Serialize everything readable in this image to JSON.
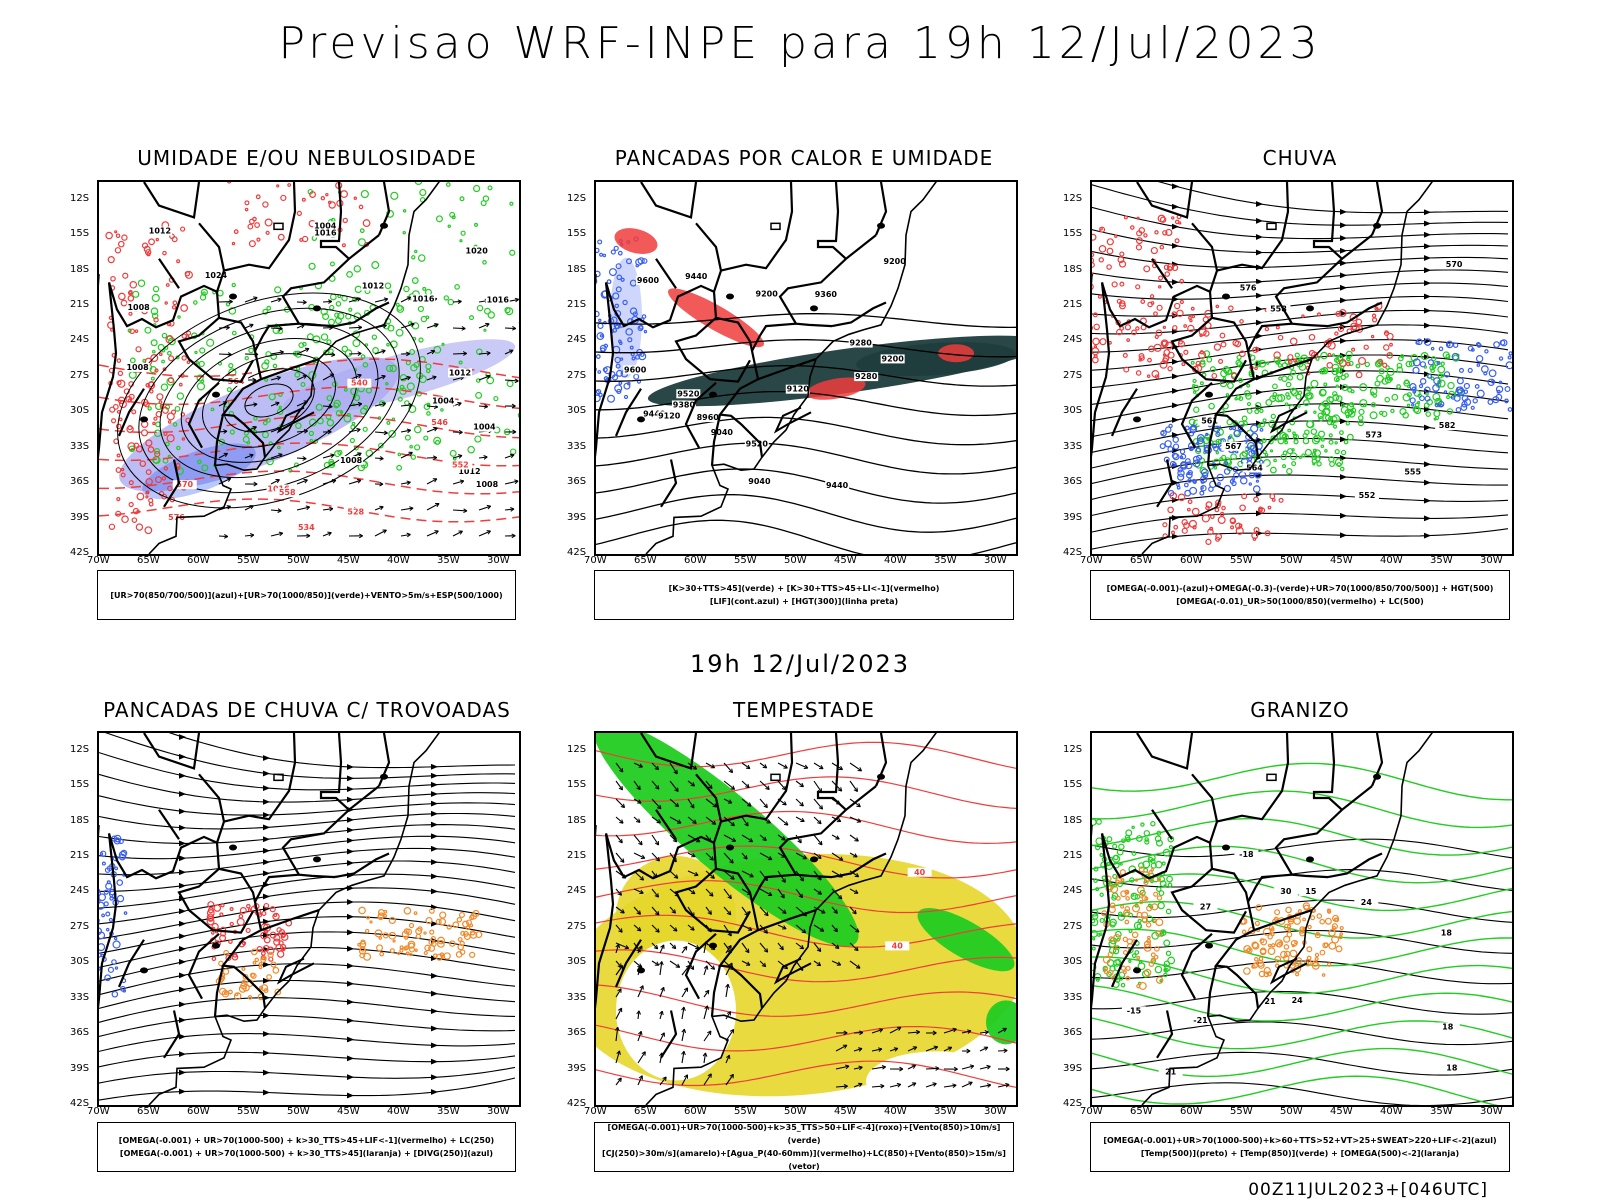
{
  "title": "Previsao WRF-INPE  para 19h 12/Jul/2023",
  "subtitle": "19h 12/Jul/2023",
  "footer_stamp": "00Z11JUL2023+[046UTC]",
  "lat_labels": [
    "12S",
    "15S",
    "18S",
    "21S",
    "24S",
    "27S",
    "30S",
    "33S",
    "36S",
    "39S",
    "42S"
  ],
  "lon_labels": [
    "70W",
    "65W",
    "60W",
    "55W",
    "50W",
    "45W",
    "40W",
    "35W",
    "30W"
  ],
  "colors": {
    "blue": "#3a5ff0",
    "green": "#22cc22",
    "red": "#f03c3c",
    "orange": "#f08a2a",
    "dark_teal": "#1f3d3d",
    "yellow": "#e6d62a",
    "lavender": "#a7a7f2",
    "black": "#000000"
  },
  "panels": [
    {
      "id": "umidade",
      "title": "UMIDADE E/OU NEBULOSIDADE",
      "legend": [
        "[UR>70(850/700/500)](azul)+[UR>70(1000/850)](verde)+VENTO>5m/s+ESP(500/1000)"
      ],
      "contour_labels": [
        "1008",
        "1012",
        "1004",
        "1008",
        "1012",
        "1016",
        "1004",
        "1008",
        "1004",
        "1012",
        "1008",
        "1012",
        "1016",
        "1020",
        "1024",
        "1016",
        "1016",
        "576",
        "570",
        "564",
        "558",
        "552",
        "546",
        "540",
        "534",
        "528"
      ]
    },
    {
      "id": "pancadas-calor",
      "title": "PANCADAS POR CALOR E UMIDADE",
      "legend": [
        "[K>30+TTS>45](verde) + [K>30+TTS>45+LI<-1](vermelho)",
        "[LIF](cont.azul) + [HGT(300)](linha preta)"
      ],
      "contour_labels": [
        "9600",
        "9600",
        "9520",
        "9440",
        "9520",
        "9440",
        "9440",
        "9360",
        "9280",
        "9380",
        "9280",
        "9200",
        "9200",
        "9200",
        "9120",
        "9120",
        "9040",
        "9040",
        "8960"
      ]
    },
    {
      "id": "chuva",
      "title": "CHUVA",
      "legend": [
        "[OMEGA(-0.001)-(azul)+OMEGA(-0.3)-(verde)+UR>70(1000/850/700/500)] + HGT(500)",
        "[OMEGA(-0.01)_UR>50(1000/850)(vermelho) + LC(500)"
      ],
      "contour_labels": [
        "582",
        "576",
        "573",
        "570",
        "567",
        "564",
        "561",
        "558",
        "555",
        "552"
      ]
    },
    {
      "id": "trovoadas",
      "title": "PANCADAS DE CHUVA C/ TROVOADAS",
      "legend": [
        "[OMEGA(-0.001) + UR>70(1000-500) + k>30_TTS>45+LIF<-1](vermelho) + LC(250)",
        "[OMEGA(-0.001) + UR>70(1000-500) + k>30_TTS>45](laranja) + [DIVG(250)](azul)"
      ],
      "contour_labels": []
    },
    {
      "id": "tempestade",
      "title": "TEMPESTADE",
      "legend": [
        "[OMEGA(-0.001)+UR>70(1000-500)+k>35_TTS>50+LIF<-4](roxo)+[Vento(850)>10m/s](verde)",
        "[CJ(250)>30m/s](amarelo)+[Agua_P(40-60mm)](vermelho)+LC(850)+[Vento(850)>15m/s](vetor)"
      ],
      "contour_labels": [
        "40",
        "40"
      ]
    },
    {
      "id": "granizo",
      "title": "GRANIZO",
      "legend": [
        "[OMEGA(-0.001)+UR>70(1000-500)+k>60+TTS>52+VT>25+SWEAT>220+LIF<-2](azul)",
        "[Temp(500)](preto) + [Temp(850)](verde) + [OMEGA(500)<-2](laranja)"
      ],
      "contour_labels": [
        "15",
        "18",
        "21",
        "18",
        "18",
        "21",
        "24",
        "27",
        "24",
        "30",
        "-15",
        "-18",
        "-21"
      ]
    }
  ]
}
